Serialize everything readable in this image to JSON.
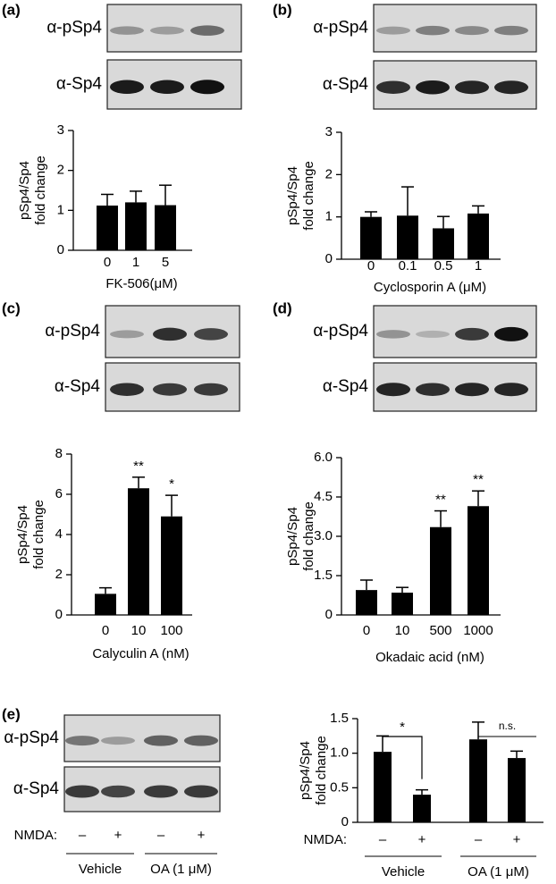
{
  "chart_data": [
    {
      "type": "bar",
      "panel_label": "(a)",
      "blot_labels": [
        "α-pSp4",
        "α-Sp4"
      ],
      "categories": [
        "0",
        "1",
        "5"
      ],
      "values": [
        1.12,
        1.2,
        1.13
      ],
      "errors": [
        0.28,
        0.28,
        0.5
      ],
      "ylim": [
        0,
        3
      ],
      "yticks": [
        0,
        1,
        2,
        3
      ],
      "ylabel": [
        "pSp4/Sp4",
        "fold change"
      ],
      "xlabel": "FK-506(μM)",
      "color": "#000000"
    },
    {
      "type": "bar",
      "panel_label": "(b)",
      "blot_labels": [
        "α-pSp4",
        "α-Sp4"
      ],
      "categories": [
        "0",
        "0.1",
        "0.5",
        "1"
      ],
      "values": [
        1.0,
        1.03,
        0.73,
        1.08
      ],
      "errors": [
        0.12,
        0.68,
        0.28,
        0.18
      ],
      "ylim": [
        0,
        3
      ],
      "yticks": [
        0,
        1,
        2,
        3
      ],
      "ylabel": [
        "pSp4/Sp4",
        "fold change"
      ],
      "xlabel": "Cyclosporin A (μM)",
      "color": "#000000"
    },
    {
      "type": "bar",
      "panel_label": "(c)",
      "blot_labels": [
        "α-pSp4",
        "α-Sp4"
      ],
      "categories": [
        "0",
        "10",
        "100"
      ],
      "values": [
        1.05,
        6.3,
        4.9
      ],
      "errors": [
        0.3,
        0.55,
        1.05
      ],
      "value_annotations": [
        null,
        "**",
        "*"
      ],
      "ylim": [
        0,
        8
      ],
      "yticks": [
        0,
        2,
        4,
        6,
        8
      ],
      "ylabel": [
        "pSp4/Sp4",
        "fold change"
      ],
      "xlabel": "Calyculin A (nM)",
      "color": "#000000"
    },
    {
      "type": "bar",
      "panel_label": "(d)",
      "blot_labels": [
        "α-pSp4",
        "α-Sp4"
      ],
      "categories": [
        "0",
        "10",
        "500",
        "1000"
      ],
      "values": [
        0.95,
        0.85,
        3.35,
        4.15
      ],
      "errors": [
        0.38,
        0.2,
        0.62,
        0.58
      ],
      "value_annotations": [
        null,
        null,
        "**",
        "**"
      ],
      "ylim": [
        0,
        6
      ],
      "yticks": [
        0,
        1.5,
        {
          "value": 3,
          "label": "3.0"
        },
        4.5,
        {
          "value": 6,
          "label": "6.0"
        }
      ],
      "ylabel": [
        "pSp4/Sp4",
        "fold change"
      ],
      "xlabel": "Okadaic acid (nM)",
      "color": "#000000"
    },
    {
      "type": "bar",
      "panel_label": "(e)",
      "blot_labels": [
        "α-pSp4",
        "α-Sp4"
      ],
      "blot_condition_label": "NMDA:",
      "blot_lanes": [
        "–",
        "+",
        "–",
        "+"
      ],
      "blot_groups": [
        "Vehicle",
        "OA (1 μM)"
      ],
      "condition_label": "NMDA:",
      "categories": [
        "–",
        "+",
        "–",
        "+"
      ],
      "groups": [
        "Vehicle",
        "OA (1 μM)"
      ],
      "values": [
        1.02,
        0.4,
        1.2,
        0.93
      ],
      "errors": [
        0.23,
        0.07,
        0.25,
        0.1
      ],
      "comparisons": [
        "*",
        "n.s."
      ],
      "ylim": [
        0,
        1.5
      ],
      "yticks": [
        0,
        0.5,
        {
          "value": 1,
          "label": "1.0"
        },
        1.5
      ],
      "ylabel": [
        "pSp4/Sp4",
        "fold change"
      ],
      "color": "#000000"
    }
  ]
}
